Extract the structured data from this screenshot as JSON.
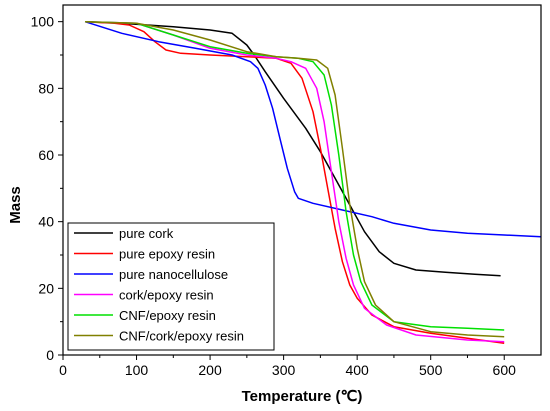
{
  "chart_data": {
    "type": "line",
    "title": "",
    "xlabel": "Temperature (℃)",
    "ylabel": "Mass",
    "xlim": [
      0,
      650
    ],
    "ylim": [
      0,
      105
    ],
    "xticks": [
      0,
      100,
      200,
      300,
      400,
      500,
      600
    ],
    "yticks": [
      0,
      20,
      40,
      60,
      80,
      100
    ],
    "grid": false,
    "legend_position": "lower-left",
    "series": [
      {
        "name": "pure cork",
        "color": "#000000",
        "x": [
          30,
          80,
          150,
          200,
          230,
          250,
          260,
          275,
          300,
          330,
          350,
          370,
          390,
          410,
          430,
          450,
          480,
          520,
          560,
          595
        ],
        "y": [
          100,
          99.5,
          98.5,
          97.5,
          96.5,
          93,
          90,
          85,
          77,
          68,
          61,
          53,
          45,
          37,
          31,
          27.5,
          25.5,
          24.8,
          24.2,
          23.8
        ]
      },
      {
        "name": "pure epoxy resin",
        "color": "#ff0000",
        "x": [
          30,
          70,
          90,
          110,
          125,
          140,
          160,
          200,
          250,
          290,
          310,
          325,
          340,
          350,
          360,
          370,
          380,
          390,
          400,
          420,
          450,
          500,
          550,
          600
        ],
        "y": [
          100,
          99.5,
          99,
          97,
          94,
          91.5,
          90.5,
          90,
          89.5,
          89,
          87.5,
          83,
          73,
          62,
          50,
          38,
          28,
          21,
          17,
          12,
          8.5,
          6.5,
          5,
          3.5
        ]
      },
      {
        "name": "pure nanocellulose",
        "color": "#0000ff",
        "x": [
          30,
          80,
          130,
          180,
          230,
          255,
          265,
          275,
          285,
          295,
          305,
          315,
          320,
          340,
          380,
          420,
          450,
          500,
          550,
          600,
          650
        ],
        "y": [
          100,
          96.5,
          94,
          92,
          90,
          88,
          86,
          81,
          74,
          65,
          56,
          49,
          47,
          45.5,
          43.5,
          41.5,
          39.5,
          37.5,
          36.5,
          36,
          35.5
        ]
      },
      {
        "name": "cork/epoxy resin",
        "color": "#ff00ff",
        "x": [
          30,
          100,
          150,
          200,
          250,
          290,
          310,
          330,
          345,
          355,
          365,
          375,
          385,
          395,
          410,
          440,
          480,
          550,
          600
        ],
        "y": [
          100,
          99.5,
          96,
          92,
          90,
          89,
          88,
          86,
          80,
          70,
          55,
          40,
          29,
          21,
          14,
          9,
          6,
          4.5,
          4
        ]
      },
      {
        "name": "CNF/epoxy resin",
        "color": "#00e000",
        "x": [
          30,
          100,
          150,
          200,
          250,
          290,
          320,
          340,
          355,
          365,
          375,
          385,
          395,
          405,
          420,
          450,
          500,
          550,
          600
        ],
        "y": [
          100,
          99.5,
          96,
          92.5,
          90.5,
          89.5,
          89,
          88,
          84,
          75,
          60,
          43,
          30,
          22,
          15,
          10,
          8.5,
          8,
          7.5
        ]
      },
      {
        "name": "CNF/cork/epoxy resin",
        "color": "#808000",
        "x": [
          30,
          100,
          150,
          200,
          250,
          290,
          320,
          345,
          360,
          370,
          380,
          390,
          400,
          410,
          425,
          450,
          500,
          550,
          600
        ],
        "y": [
          100,
          99.5,
          97.5,
          94.5,
          91,
          89.5,
          89,
          88.5,
          86,
          78,
          62,
          45,
          32,
          22,
          15,
          10,
          7,
          6,
          5.5
        ]
      }
    ]
  }
}
